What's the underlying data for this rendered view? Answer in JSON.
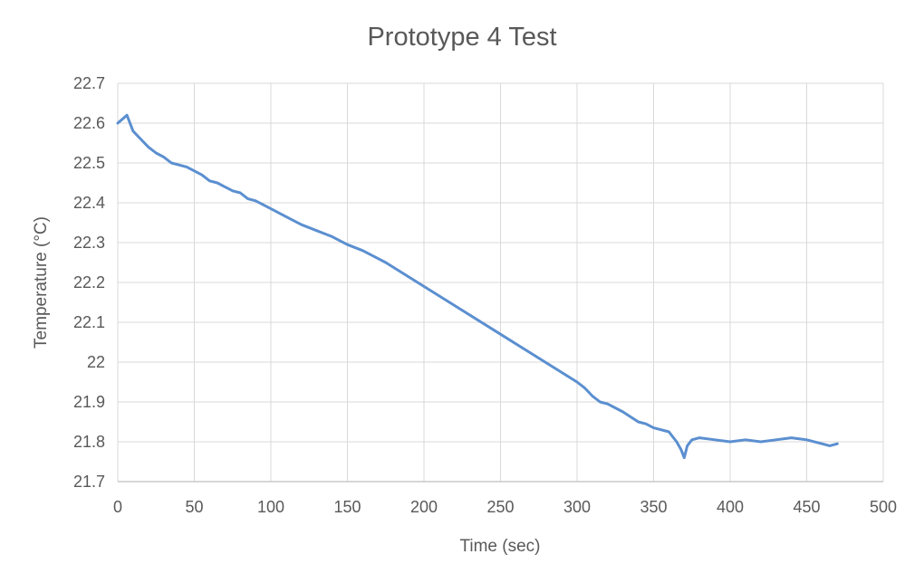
{
  "chart_data": {
    "type": "line",
    "title": "Prototype 4 Test",
    "xlabel": "Time (sec)",
    "ylabel": "Temperature (°C)",
    "xlim": [
      0,
      500
    ],
    "ylim": [
      21.7,
      22.7
    ],
    "x_ticks": [
      "0",
      "50",
      "100",
      "150",
      "200",
      "250",
      "300",
      "350",
      "400",
      "450",
      "500"
    ],
    "y_ticks": [
      "21.7",
      "21.8",
      "21.9",
      "22",
      "22.1",
      "22.2",
      "22.3",
      "22.4",
      "22.5",
      "22.6",
      "22.7"
    ],
    "grid": true,
    "legend": "none",
    "series": [
      {
        "color": "#5b8fd0",
        "x": [
          0,
          3,
          6,
          8,
          10,
          15,
          20,
          25,
          30,
          35,
          40,
          45,
          50,
          55,
          60,
          65,
          70,
          75,
          80,
          85,
          90,
          95,
          100,
          110,
          120,
          130,
          140,
          150,
          160,
          170,
          175,
          200,
          250,
          300,
          305,
          310,
          315,
          320,
          330,
          340,
          345,
          350,
          360,
          365,
          368,
          370,
          372,
          375,
          380,
          390,
          400,
          410,
          420,
          430,
          440,
          450,
          460,
          465,
          470
        ],
        "y": [
          22.6,
          22.61,
          22.62,
          22.6,
          22.58,
          22.56,
          22.54,
          22.525,
          22.515,
          22.5,
          22.495,
          22.49,
          22.48,
          22.47,
          22.455,
          22.45,
          22.44,
          22.43,
          22.425,
          22.41,
          22.405,
          22.395,
          22.385,
          22.365,
          22.345,
          22.33,
          22.315,
          22.295,
          22.28,
          22.26,
          22.25,
          22.19,
          22.07,
          21.95,
          21.935,
          21.915,
          21.9,
          21.895,
          21.875,
          21.85,
          21.845,
          21.835,
          21.825,
          21.8,
          21.78,
          21.76,
          21.79,
          21.805,
          21.81,
          21.805,
          21.8,
          21.805,
          21.8,
          21.805,
          21.81,
          21.805,
          21.795,
          21.79,
          21.795
        ]
      }
    ]
  }
}
